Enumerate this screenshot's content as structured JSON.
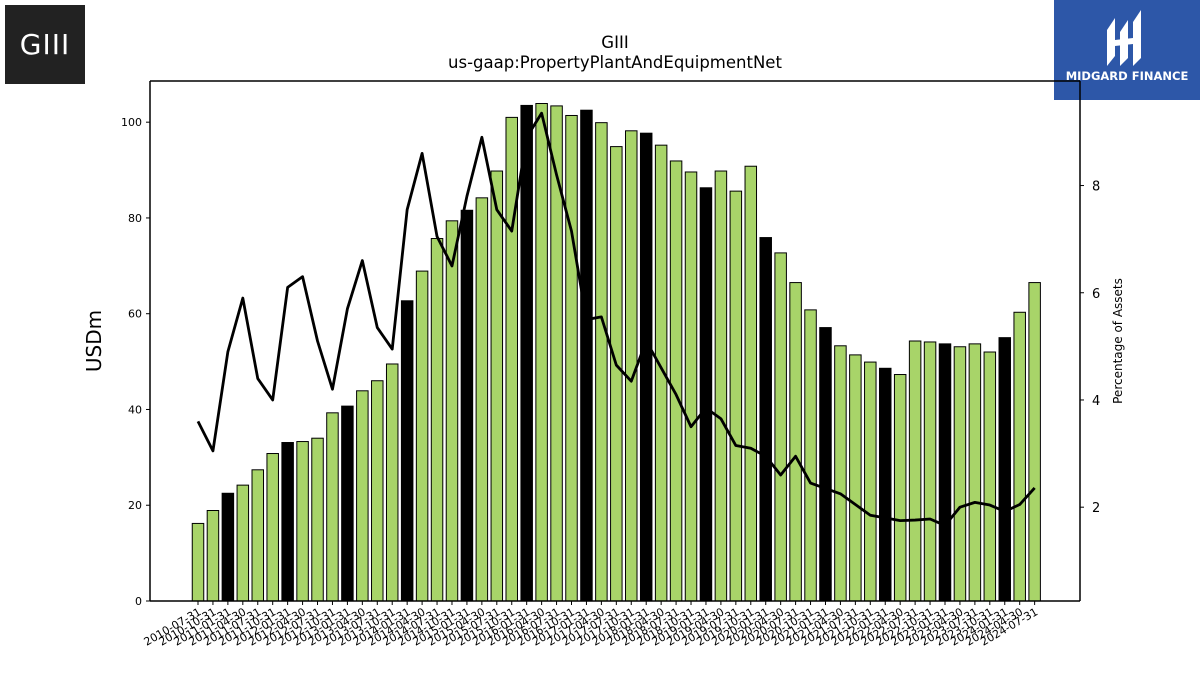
{
  "logos": {
    "left_text": "GIII",
    "right_text": "MIDGARD FINANCE"
  },
  "colors": {
    "bar_green": "#a8d469",
    "bar_black": "#000000",
    "line": "#000000",
    "brand_blue": "#2d57a8"
  },
  "chart_data": {
    "type": "bar",
    "title": "GIII",
    "subtitle": "us-gaap:PropertyPlantAndEquipmentNet",
    "ylabel": "USDm",
    "y2label": "Percentage of Assets",
    "ylim": [
      0,
      108.6
    ],
    "y2lim": [
      0.25,
      9.95
    ],
    "yticks": [
      0,
      20,
      40,
      60,
      80,
      100
    ],
    "y2ticks": [
      2,
      4,
      6,
      8
    ],
    "categories": [
      "2010-07-31",
      "2010-10-31",
      "2011-01-31",
      "2011-04-30",
      "2011-07-31",
      "2011-10-31",
      "2012-01-31",
      "2012-04-30",
      "2012-07-31",
      "2012-10-31",
      "2013-01-31",
      "2013-04-30",
      "2013-07-31",
      "2013-10-31",
      "2014-01-31",
      "2014-04-30",
      "2014-07-31",
      "2014-10-31",
      "2015-01-31",
      "2015-04-30",
      "2015-07-31",
      "2015-10-31",
      "2016-01-31",
      "2016-04-30",
      "2016-07-31",
      "2016-10-31",
      "2017-01-31",
      "2017-04-30",
      "2017-07-31",
      "2017-10-31",
      "2018-01-31",
      "2018-04-30",
      "2018-07-31",
      "2018-10-31",
      "2019-01-31",
      "2019-04-30",
      "2019-07-31",
      "2019-10-31",
      "2020-01-31",
      "2020-04-30",
      "2020-07-31",
      "2020-10-31",
      "2021-01-31",
      "2021-04-30",
      "2021-07-31",
      "2021-10-31",
      "2022-01-31",
      "2022-04-30",
      "2022-07-31",
      "2022-10-31",
      "2023-01-31",
      "2023-04-30",
      "2023-07-31",
      "2023-10-31",
      "2024-01-31",
      "2024-04-30",
      "2024-07-31"
    ],
    "series": [
      {
        "type": "bar",
        "values": [
          16.2,
          18.9,
          22.5,
          24.2,
          27.4,
          30.8,
          33.1,
          33.3,
          34.0,
          39.3,
          40.7,
          43.9,
          46.0,
          49.5,
          62.7,
          68.9,
          75.7,
          79.4,
          81.6,
          84.2,
          89.8,
          101.0,
          103.5,
          103.9,
          103.4,
          101.4,
          102.5,
          99.9,
          94.9,
          98.2,
          97.7,
          95.2,
          91.9,
          89.6,
          86.3,
          89.8,
          85.6,
          90.8,
          75.9,
          72.7,
          66.5,
          60.8,
          57.1,
          53.3,
          51.4,
          49.9,
          48.6,
          47.3,
          54.3,
          54.1,
          53.7,
          53.1,
          53.7,
          52.0,
          55.0,
          60.3,
          66.5
        ],
        "highlight": [
          false,
          false,
          true,
          false,
          false,
          false,
          true,
          false,
          false,
          false,
          true,
          false,
          false,
          false,
          true,
          false,
          false,
          false,
          true,
          false,
          false,
          false,
          true,
          false,
          false,
          false,
          true,
          false,
          false,
          false,
          true,
          false,
          false,
          false,
          true,
          false,
          false,
          false,
          true,
          false,
          false,
          false,
          true,
          false,
          false,
          false,
          true,
          false,
          false,
          false,
          true,
          false,
          false,
          false,
          true,
          false,
          false
        ]
      },
      {
        "type": "line",
        "axis": "right",
        "values": [
          3.6,
          3.05,
          4.9,
          5.9,
          4.4,
          4.0,
          6.1,
          6.3,
          5.1,
          4.2,
          5.7,
          6.6,
          5.35,
          4.95,
          7.55,
          8.6,
          7.05,
          6.5,
          7.8,
          8.9,
          7.55,
          7.15,
          8.9,
          9.35,
          8.2,
          7.15,
          5.5,
          5.55,
          4.65,
          4.35,
          5.1,
          4.6,
          4.1,
          3.5,
          3.85,
          3.65,
          3.15,
          3.1,
          2.95,
          2.6,
          2.95,
          2.45,
          2.35,
          2.25,
          2.05,
          1.85,
          1.8,
          1.75,
          1.76,
          1.78,
          1.66,
          2.0,
          2.09,
          2.04,
          1.92,
          2.05,
          2.36
        ]
      }
    ]
  }
}
